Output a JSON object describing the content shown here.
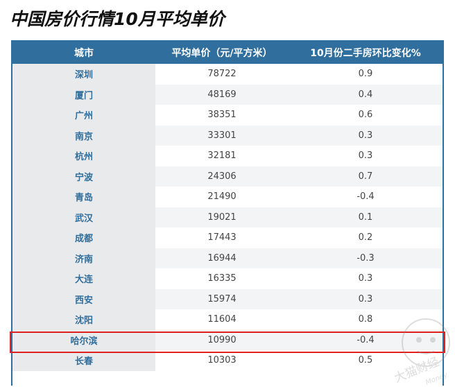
{
  "title": "中国房价行情10月平均单价",
  "table": {
    "headers": [
      "城市",
      "平均单价（元/平方米）",
      "10月份二手房环比变化%"
    ],
    "rows": [
      {
        "city": "深圳",
        "price": "78722",
        "change": "0.9"
      },
      {
        "city": "厦门",
        "price": "48169",
        "change": "0.4"
      },
      {
        "city": "广州",
        "price": "38351",
        "change": "0.6"
      },
      {
        "city": "南京",
        "price": "33301",
        "change": "0.3"
      },
      {
        "city": "杭州",
        "price": "32181",
        "change": "0.3"
      },
      {
        "city": "宁波",
        "price": "24306",
        "change": "0.7"
      },
      {
        "city": "青岛",
        "price": "21490",
        "change": "-0.4"
      },
      {
        "city": "武汉",
        "price": "19021",
        "change": "0.1"
      },
      {
        "city": "成都",
        "price": "17443",
        "change": "0.2"
      },
      {
        "city": "济南",
        "price": "16944",
        "change": "-0.3"
      },
      {
        "city": "大连",
        "price": "16335",
        "change": "0.3"
      },
      {
        "city": "西安",
        "price": "15974",
        "change": "0.3"
      },
      {
        "city": "沈阳",
        "price": "11604",
        "change": "0.8"
      },
      {
        "city": "哈尔滨",
        "price": "10990",
        "change": "-0.4"
      },
      {
        "city": "长春",
        "price": "10303",
        "change": "0.5"
      }
    ],
    "highlighted_city": "哈尔滨"
  },
  "watermark": {
    "text": "大猫财经",
    "subtext": "Money"
  },
  "colors": {
    "header_bg": "#2f6e9d",
    "city_text": "#2f6e9d",
    "highlight": "#e02020"
  }
}
